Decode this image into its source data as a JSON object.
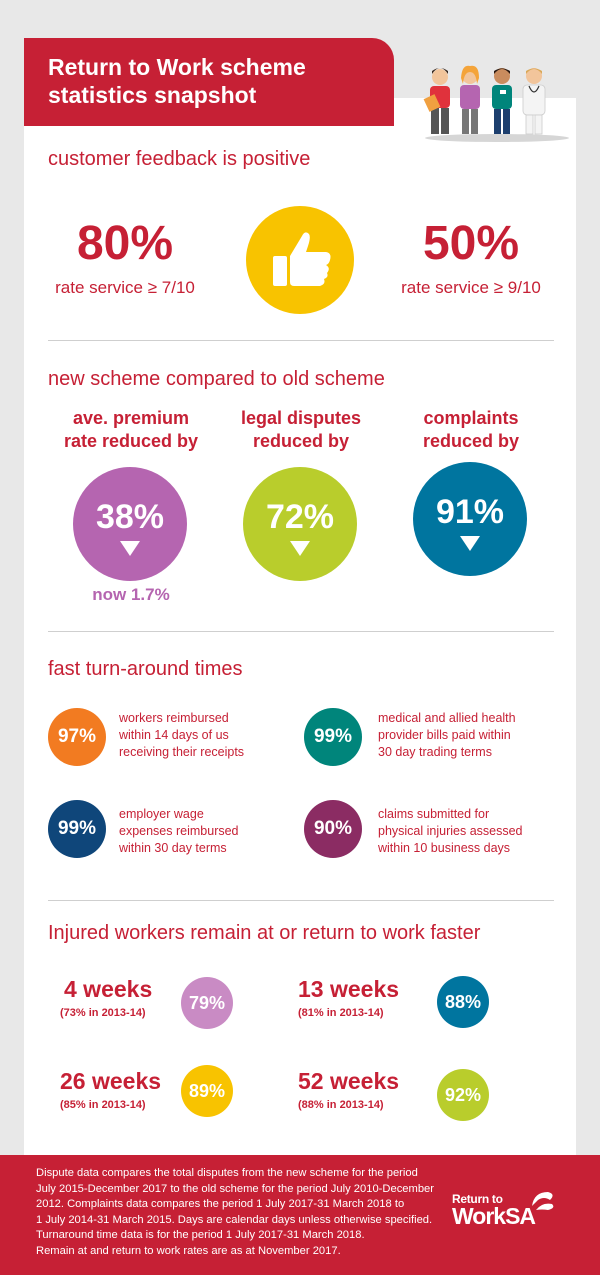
{
  "header": {
    "title_line1": "Return to Work scheme",
    "title_line2": "statistics snapshot"
  },
  "feedback": {
    "title": "customer feedback is positive",
    "left": {
      "pct": "80%",
      "sub": "rate service ≥ 7/10"
    },
    "right": {
      "pct": "50%",
      "sub": "rate service ≥ 9/10"
    },
    "icon": "thumbs-up-icon"
  },
  "comparison": {
    "title": "new scheme compared to old scheme",
    "items": [
      {
        "label_line1": "ave. premium",
        "label_line2": "rate reduced by",
        "pct": "38%",
        "color": "#b565b0"
      },
      {
        "label_line1": "legal disputes",
        "label_line2": "reduced by",
        "pct": "72%",
        "color": "#b9cd2c"
      },
      {
        "label_line1": "complaints",
        "label_line2": "reduced by",
        "pct": "91%",
        "color": "#00759f"
      }
    ],
    "note": "now 1.7%"
  },
  "turnaround": {
    "title": "fast turn-around times",
    "items": [
      {
        "pct": "97%",
        "color": "#f27b21",
        "line1": "workers reimbursed",
        "line2": "within 14 days of us",
        "line3": "receiving their receipts"
      },
      {
        "pct": "99%",
        "color": "#00857b",
        "line1": "medical and allied health",
        "line2": "provider bills paid within",
        "line3": "30 day trading terms"
      },
      {
        "pct": "99%",
        "color": "#0f467a",
        "line1": "employer wage",
        "line2": "expenses reimbursed",
        "line3": "within 30 day terms"
      },
      {
        "pct": "90%",
        "color": "#8b2c63",
        "line1": "claims submitted for",
        "line2": "physical injuries assessed",
        "line3": "within 10 business days"
      }
    ]
  },
  "rtw": {
    "title": "Injured workers remain at or return to work faster",
    "items": [
      {
        "weeks": "4 weeks",
        "prev": "(73% in 2013-14)",
        "pct": "79%",
        "color": "#c98bc4"
      },
      {
        "weeks": "13 weeks",
        "prev": "(81% in 2013-14)",
        "pct": "88%",
        "color": "#00759f"
      },
      {
        "weeks": "26 weeks",
        "prev": "(85% in 2013-14)",
        "pct": "89%",
        "color": "#f8c300"
      },
      {
        "weeks": "52 weeks",
        "prev": "(88% in 2013-14)",
        "pct": "92%",
        "color": "#b9cd2c"
      }
    ]
  },
  "footer": {
    "lines": [
      "Dispute data compares the total disputes from the new scheme for the period",
      "July 2015-December 2017 to the old scheme for the period July 2010-December",
      "2012. Complaints data compares the period 1 July 2017-31 March 2018 to",
      "1 July 2014-31 March 2015. Days are calendar days unless otherwise specified.",
      "Turnaround time data is for the period 1 July 2017-31 March 2018.",
      "Remain at and return to work rates are as at November 2017."
    ],
    "logo_line1": "Return to",
    "logo_line2": "WorkSA"
  },
  "colors": {
    "brand_red": "#c62035",
    "background": "#e8e8e8"
  }
}
